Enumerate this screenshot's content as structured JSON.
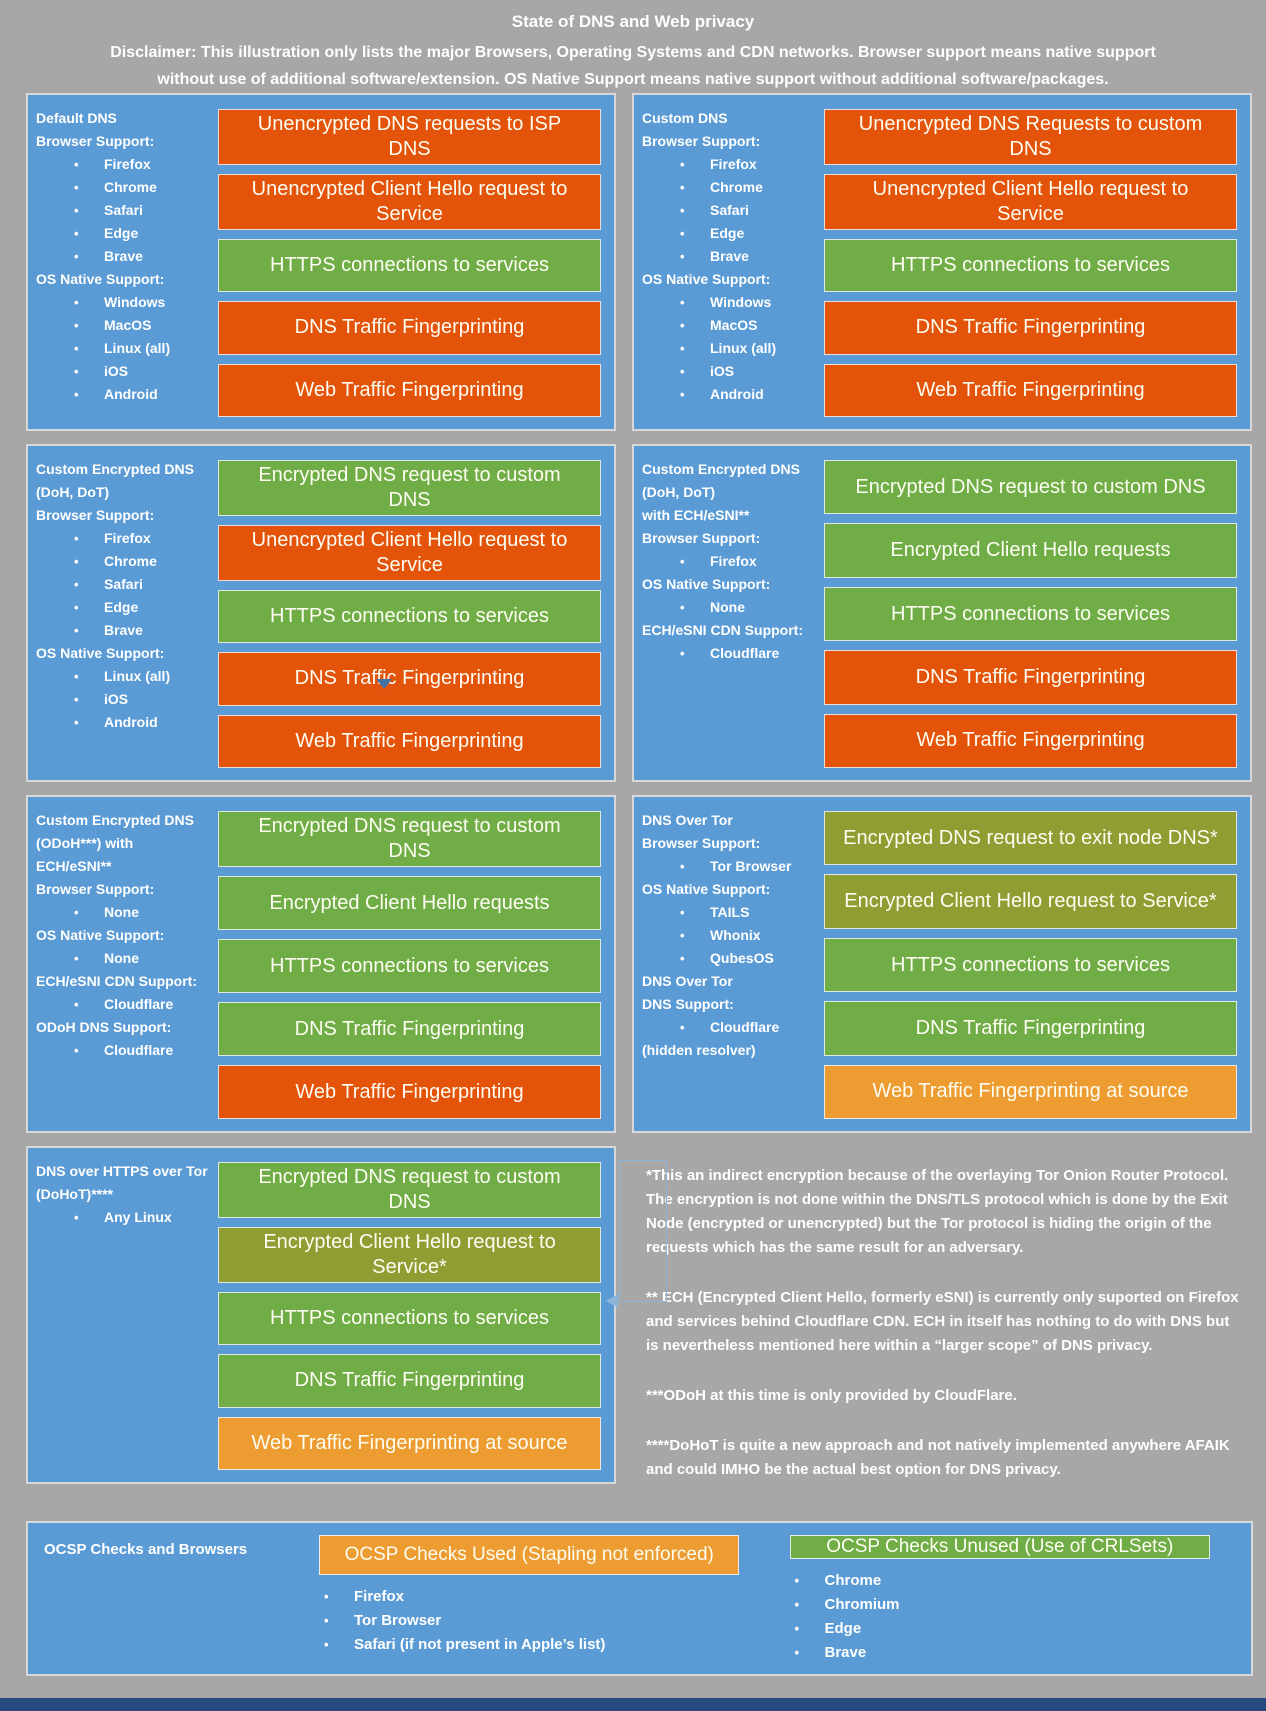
{
  "header": {
    "title": "State of DNS and Web privacy",
    "disclaimer": "Disclaimer: This illustration only lists the major Browsers, Operating Systems and CDN networks. Browser support means native support without use of additional software/extension. OS Native Support means native support without additional software/packages."
  },
  "colors": {
    "background": "#a7a7a7",
    "panel_blue": "#5b9bd5",
    "bar_red": "#e35309",
    "bar_green": "#70ad47",
    "bar_olive": "#8f9d33",
    "bar_amber": "#ed9c31",
    "footer_navy": "#26497e"
  },
  "panels": [
    {
      "name": "default-dns",
      "labels": [
        {
          "h": "Default DNS"
        },
        {
          "h": "Browser Support:"
        },
        {
          "b": "Firefox"
        },
        {
          "b": "Chrome"
        },
        {
          "b": "Safari"
        },
        {
          "b": "Edge"
        },
        {
          "b": "Brave"
        },
        {
          "h": "OS Native Support:"
        },
        {
          "b": "Windows"
        },
        {
          "b": "MacOS"
        },
        {
          "b": "Linux (all)"
        },
        {
          "b": "iOS"
        },
        {
          "b": "Android"
        }
      ],
      "bars": [
        {
          "color": "red",
          "text": "Unencrypted DNS requests to ISP DNS"
        },
        {
          "color": "red",
          "text": "Unencrypted Client Hello request to Service"
        },
        {
          "color": "green",
          "text": "HTTPS connections to services"
        },
        {
          "color": "red",
          "text": "DNS Traffic Fingerprinting"
        },
        {
          "color": "red",
          "text": "Web Traffic Fingerprinting"
        }
      ]
    },
    {
      "name": "custom-dns",
      "labels": [
        {
          "h": "Custom DNS"
        },
        {
          "h": "Browser Support:"
        },
        {
          "b": "Firefox"
        },
        {
          "b": "Chrome"
        },
        {
          "b": "Safari"
        },
        {
          "b": "Edge"
        },
        {
          "b": "Brave"
        },
        {
          "h": "OS Native Support:"
        },
        {
          "b": "Windows"
        },
        {
          "b": "MacOS"
        },
        {
          "b": "Linux (all)"
        },
        {
          "b": "iOS"
        },
        {
          "b": "Android"
        }
      ],
      "bars": [
        {
          "color": "red",
          "text": "Unencrypted DNS Requests to custom DNS"
        },
        {
          "color": "red",
          "text": "Unencrypted Client Hello request to Service"
        },
        {
          "color": "green",
          "text": "HTTPS connections to services"
        },
        {
          "color": "red",
          "text": "DNS Traffic Fingerprinting"
        },
        {
          "color": "red",
          "text": "Web Traffic Fingerprinting"
        }
      ]
    },
    {
      "name": "custom-encrypted-dns-doh-dot",
      "labels": [
        {
          "h": "Custom Encrypted DNS"
        },
        {
          "h": "(DoH, DoT)"
        },
        {
          "h": "Browser Support:"
        },
        {
          "b": "Firefox"
        },
        {
          "b": "Chrome"
        },
        {
          "b": "Safari"
        },
        {
          "b": "Edge"
        },
        {
          "b": "Brave"
        },
        {
          "h": "OS Native Support:"
        },
        {
          "b": "Linux (all)"
        },
        {
          "b": "iOS"
        },
        {
          "b": "Android"
        }
      ],
      "bars": [
        {
          "color": "green",
          "text": "Encrypted DNS request to custom DNS"
        },
        {
          "color": "red",
          "text": "Unencrypted Client Hello request to Service"
        },
        {
          "color": "green",
          "text": "HTTPS connections to services"
        },
        {
          "color": "red",
          "text": "DNS Traffic Fingerprinting"
        },
        {
          "color": "red",
          "text": "Web Traffic Fingerprinting"
        }
      ]
    },
    {
      "name": "custom-encrypted-dns-doh-dot-ech-esni",
      "labels": [
        {
          "h": "Custom Encrypted DNS"
        },
        {
          "h": "(DoH, DoT)"
        },
        {
          "h": "with ECH/eSNI**"
        },
        {
          "h": "Browser Support:"
        },
        {
          "b": "Firefox"
        },
        {
          "h": "OS Native Support:"
        },
        {
          "b": "None"
        },
        {
          "h": "ECH/eSNI CDN Support:"
        },
        {
          "b": "Cloudflare"
        }
      ],
      "bars": [
        {
          "color": "green",
          "text": "Encrypted DNS request to custom DNS"
        },
        {
          "color": "green",
          "text": "Encrypted Client Hello requests"
        },
        {
          "color": "green",
          "text": "HTTPS connections to services"
        },
        {
          "color": "red",
          "text": "DNS Traffic Fingerprinting"
        },
        {
          "color": "red",
          "text": "Web Traffic Fingerprinting"
        }
      ]
    },
    {
      "name": "custom-encrypted-dns-odoh-ech-esni",
      "labels": [
        {
          "h": "Custom Encrypted DNS"
        },
        {
          "h": "(ODoH***) with"
        },
        {
          "h": "ECH/eSNI**"
        },
        {
          "h": "Browser Support:"
        },
        {
          "b": "None"
        },
        {
          "h": "OS Native Support:"
        },
        {
          "b": "None"
        },
        {
          "h": "ECH/eSNI CDN Support:"
        },
        {
          "b": "Cloudflare"
        },
        {
          "h": "ODoH DNS Support:"
        },
        {
          "b": "Cloudflare"
        }
      ],
      "bars": [
        {
          "color": "green",
          "text": "Encrypted DNS request to custom DNS"
        },
        {
          "color": "green",
          "text": "Encrypted Client Hello requests"
        },
        {
          "color": "green",
          "text": "HTTPS connections to services"
        },
        {
          "color": "green",
          "text": "DNS Traffic Fingerprinting"
        },
        {
          "color": "red",
          "text": "Web Traffic Fingerprinting"
        }
      ]
    },
    {
      "name": "dns-over-tor",
      "labels": [
        {
          "h": "DNS Over Tor"
        },
        {
          "h": "Browser Support:"
        },
        {
          "b": "Tor Browser"
        },
        {
          "h": "OS Native Support:"
        },
        {
          "b": "TAILS"
        },
        {
          "b": "Whonix"
        },
        {
          "b": "QubesOS"
        },
        {
          "h": "DNS Over Tor"
        },
        {
          "h": "DNS Support:"
        },
        {
          "b": "Cloudflare"
        },
        {
          "h": "(hidden resolver)"
        }
      ],
      "bars": [
        {
          "color": "olive",
          "text": "Encrypted DNS request to exit node DNS*"
        },
        {
          "color": "olive",
          "text": "Encrypted Client Hello request to Service*"
        },
        {
          "color": "green",
          "text": "HTTPS connections to services"
        },
        {
          "color": "green",
          "text": "DNS Traffic Fingerprinting"
        },
        {
          "color": "amber",
          "text": "Web Traffic Fingerprinting at source"
        }
      ]
    },
    {
      "name": "dohot",
      "labels": [
        {
          "h": "DNS over HTTPS over Tor"
        },
        {
          "h": "(DoHoT)****"
        },
        {
          "b": "Any Linux"
        }
      ],
      "bars": [
        {
          "color": "green",
          "text": "Encrypted DNS request to custom DNS"
        },
        {
          "color": "olive",
          "text": "Encrypted Client Hello request to Service*"
        },
        {
          "color": "green",
          "text": "HTTPS connections to services"
        },
        {
          "color": "green",
          "text": "DNS Traffic Fingerprinting"
        },
        {
          "color": "amber",
          "text": "Web Traffic Fingerprinting at source"
        }
      ]
    }
  ],
  "footnotes": [
    "*This an indirect encryption because of the overlaying Tor Onion Router Protocol. The encryption is not done within the DNS/TLS protocol which is done by the Exit Node (encrypted or unencrypted) but the Tor protocol is hiding the origin of the requests which has the same result for an adversary.",
    "** ECH (Encrypted Client Hello, formerly eSNI) is currently only suported on Firefox and services behind Cloudflare CDN. ECH in itself has nothing to do with DNS but is nevertheless mentioned here within a “larger scope” of DNS privacy.",
    "***ODoH at this time is only provided by CloudFlare.",
    "****DoHoT is quite a new approach and not natively implemented anywhere AFAIK and could IMHO be the actual best option for DNS privacy."
  ],
  "ocsp": {
    "title": "OCSP Checks and Browsers",
    "used": {
      "label": "OCSP Checks Used (Stapling not enforced)",
      "items": [
        "Firefox",
        "Tor Browser",
        "Safari (if not present in Apple’s list)"
      ]
    },
    "unused": {
      "label": "OCSP Checks Unused (Use of CRLSets)",
      "items": [
        "Chrome",
        "Chromium",
        "Edge",
        "Brave"
      ]
    }
  }
}
